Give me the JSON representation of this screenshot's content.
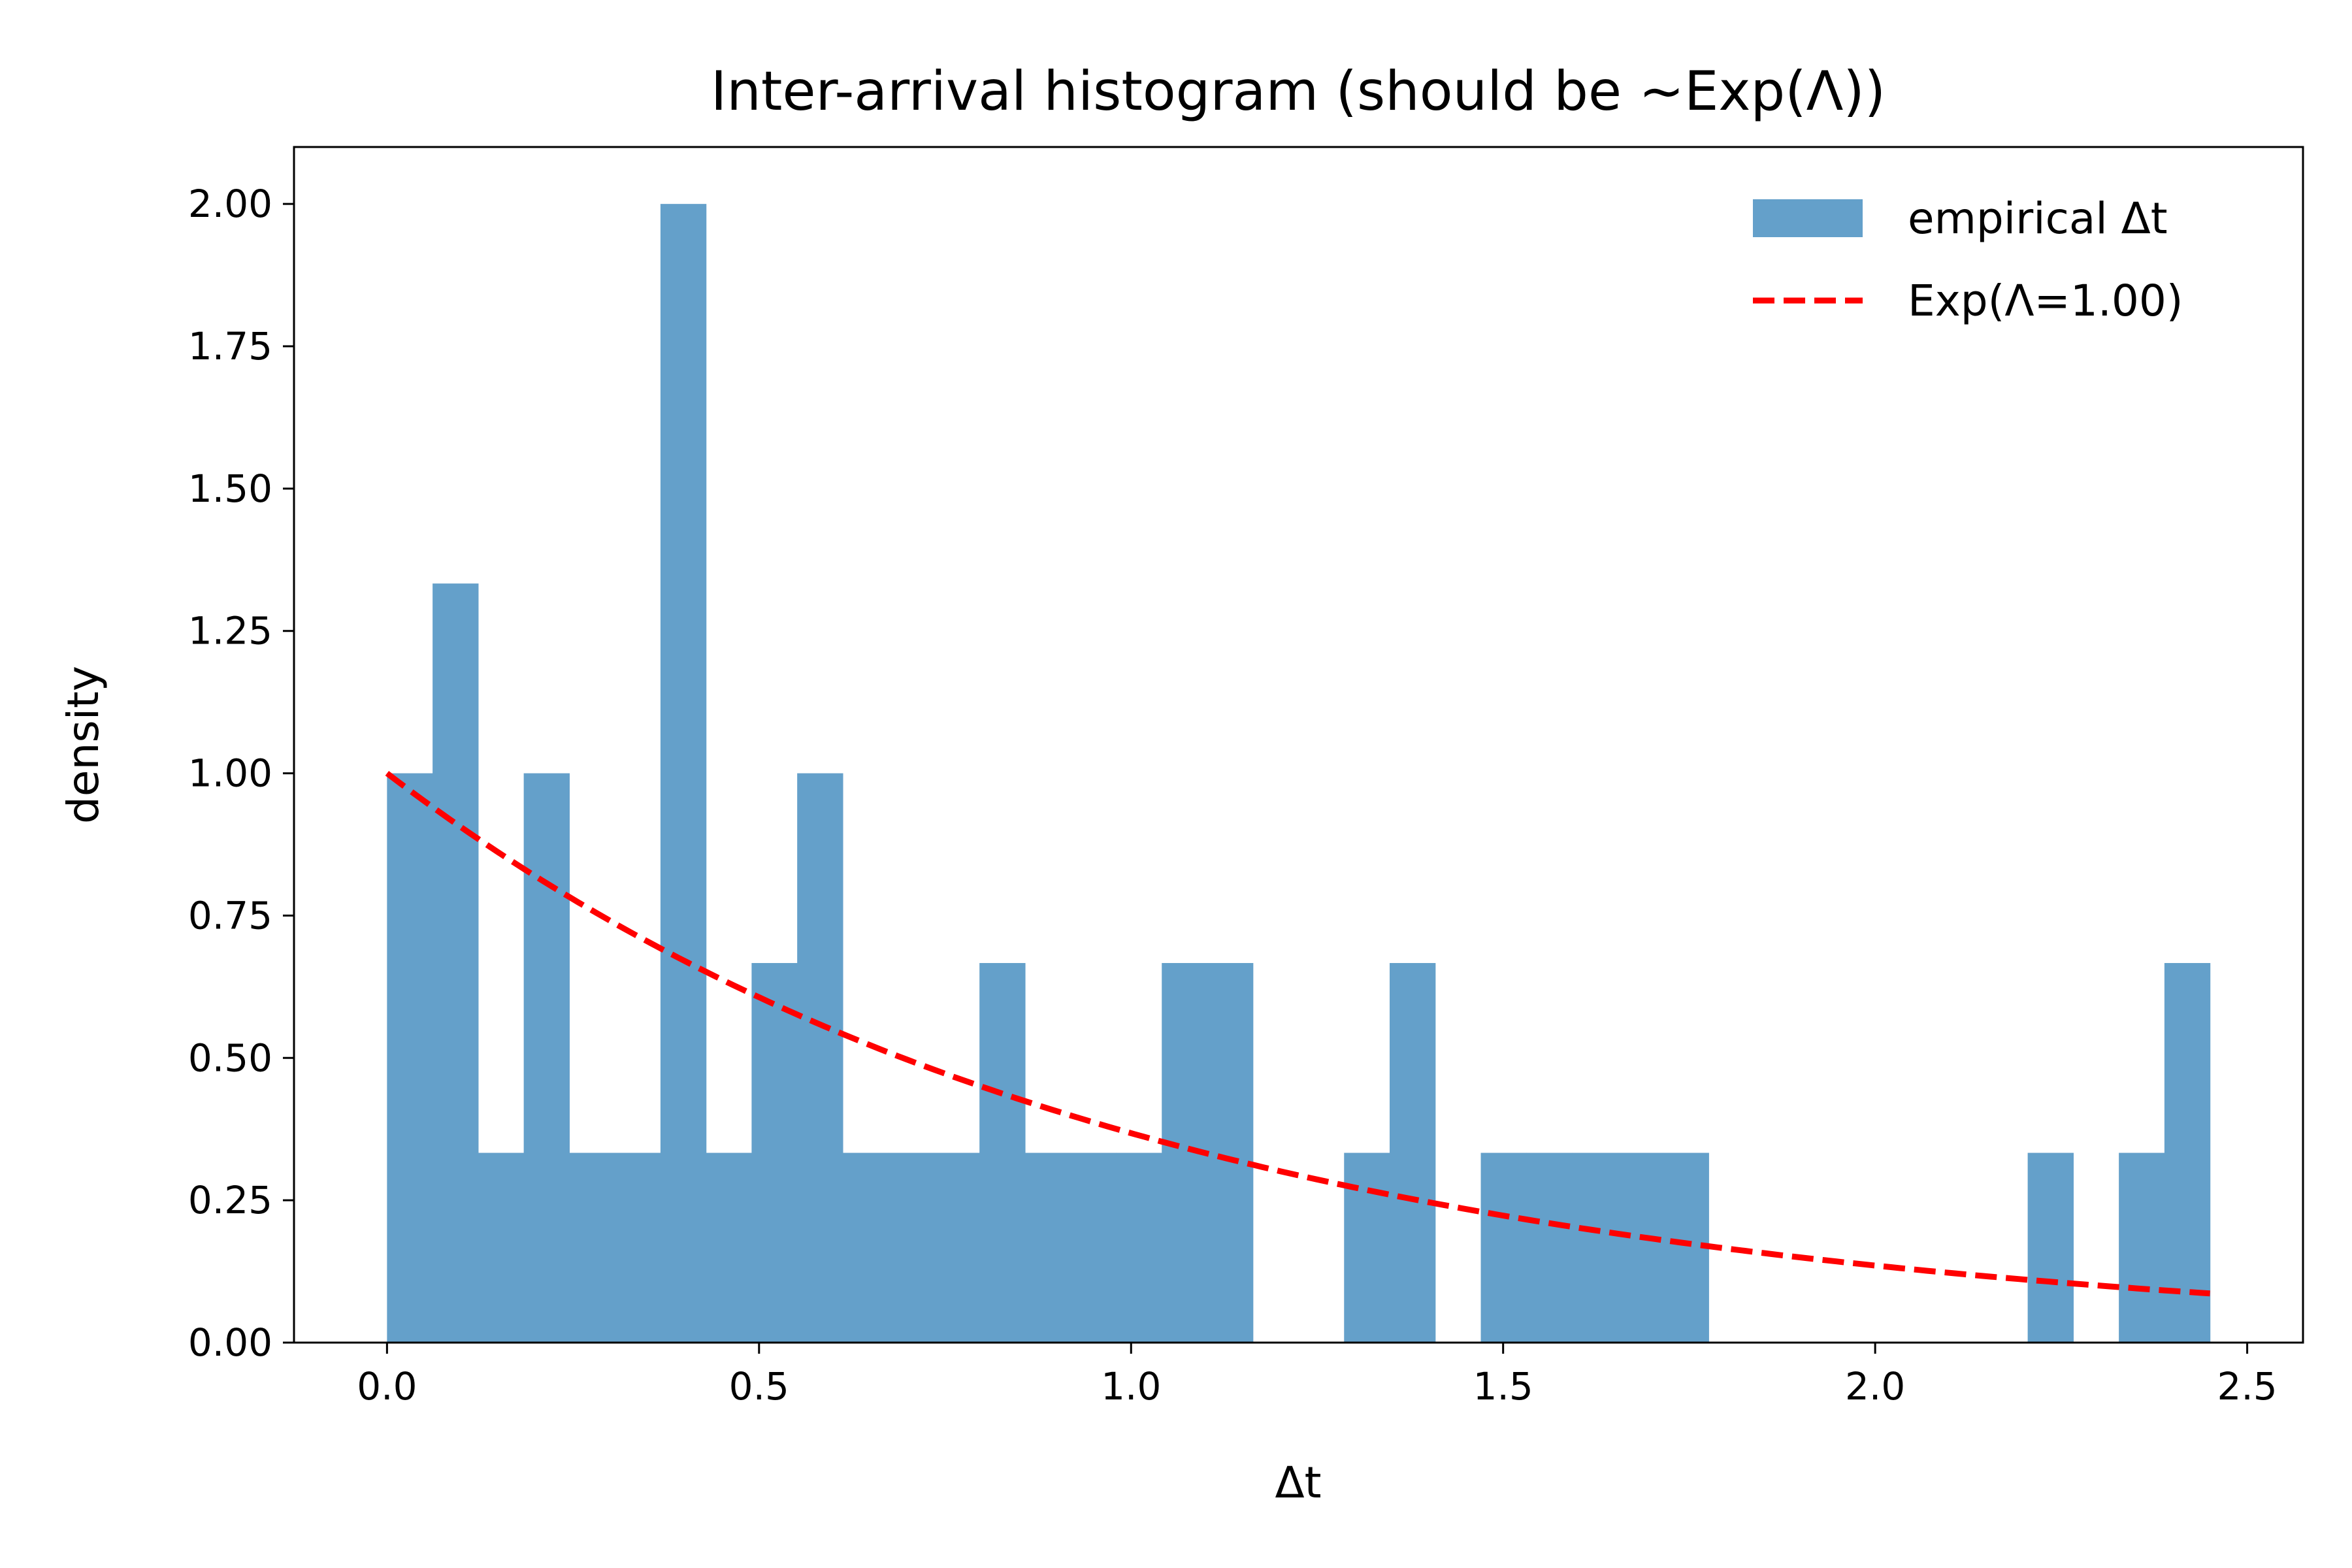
{
  "chart_data": {
    "type": "bar",
    "title": "Inter-arrival histogram (should be ~Exp(Λ))",
    "xlabel": "Δt",
    "ylabel": "density",
    "xlim": [
      -0.125,
      2.575
    ],
    "ylim": [
      0,
      2.1
    ],
    "xticks": [
      0.0,
      0.5,
      1.0,
      1.5,
      2.0,
      2.5
    ],
    "xtick_labels": [
      "0.0",
      "0.5",
      "1.0",
      "1.5",
      "2.0",
      "2.5"
    ],
    "yticks": [
      0,
      0.25,
      0.5,
      0.75,
      1.0,
      1.25,
      1.5,
      1.75,
      2.0
    ],
    "ytick_labels": [
      "0.00",
      "0.25",
      "0.50",
      "0.75",
      "1.00",
      "1.25",
      "1.50",
      "1.75",
      "2.00"
    ],
    "grid": false,
    "legend_position": "top-right",
    "histogram": {
      "name": "empirical Δt",
      "color": "#64a0ca",
      "bin_start": 0.0,
      "bin_end": 2.45,
      "bins": 40,
      "values": [
        1.0,
        1.3333,
        0.3333,
        1.0,
        0.3333,
        0.3333,
        2.0,
        0.3333,
        0.6667,
        1.0,
        0.3333,
        0.3333,
        0.3333,
        0.6667,
        0.3333,
        0.3333,
        0.3333,
        0.6667,
        0.6667,
        0,
        0,
        0.3333,
        0.6667,
        0,
        0.3333,
        0.3333,
        0.3333,
        0.3333,
        0.3333,
        0,
        0,
        0,
        0,
        0,
        0,
        0,
        0.3333,
        0,
        0.3333,
        0.6667
      ]
    },
    "curve": {
      "name": "Exp(Λ=1.00)",
      "color": "#ff0000",
      "style": "dashed",
      "lambda": 1.0,
      "x_range": [
        0.0,
        2.45
      ]
    }
  }
}
